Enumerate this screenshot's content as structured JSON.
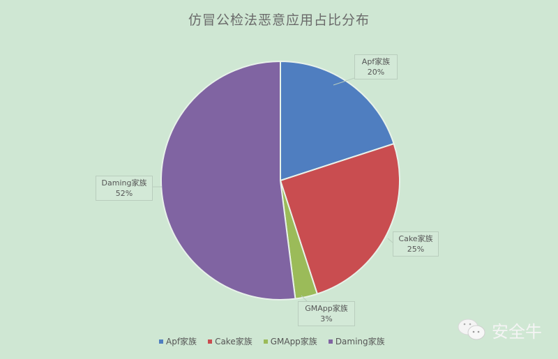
{
  "chart_data": {
    "type": "pie",
    "title": "仿冒公检法恶意应用占比分布",
    "categories": [
      "Apf家族",
      "Cake家族",
      "GMApp家族",
      "Daming家族"
    ],
    "values": [
      20,
      25,
      3,
      52
    ],
    "data_labels": [
      "20%",
      "25%",
      "3%",
      "52%"
    ],
    "colors": [
      "#4f7ec0",
      "#c94d50",
      "#9bbb59",
      "#8064a2"
    ],
    "legend_position": "bottom",
    "start_angle": "12 o'clock, clockwise"
  },
  "watermark": {
    "text": "安全牛",
    "icon": "wechat-icon"
  }
}
